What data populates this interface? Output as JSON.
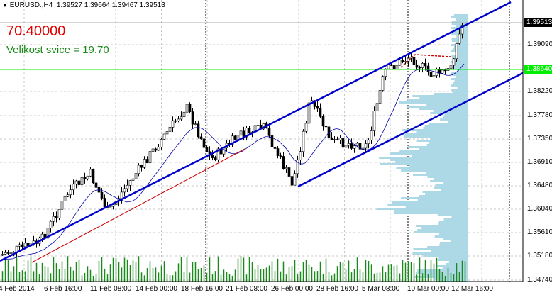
{
  "header": {
    "symbol_menu": "▼",
    "title": "EURUSD.,H4",
    "ohlc": "1.39527 1.39664 1.39467 1.39513"
  },
  "indicator": {
    "value": "70.40000",
    "candle_size": "Velikost svice = 19.70"
  },
  "colors": {
    "bull": "#000000",
    "bear": "#000000",
    "channel": "#0000cc",
    "ma": "#0000aa",
    "trend": "#cc0000",
    "volume": "#1a8a1a",
    "profile": "#add8e6",
    "level": "#00ee00"
  },
  "price_axis": {
    "ticks": [
      "1.39090",
      "1.38220",
      "1.37780",
      "1.37350",
      "1.36910",
      "1.36480",
      "1.36040",
      "1.35610",
      "1.35180",
      "1.34740"
    ],
    "current_price": "1.39513",
    "level_price": "1.38640"
  },
  "time_axis": {
    "ticks": [
      "4 Feb 2014",
      "6 Feb 16:00",
      "11 Feb 08:00",
      "14 Feb 00:00",
      "18 Feb 16:00",
      "21 Feb 08:00",
      "26 Feb 00:00",
      "28 Feb 16:00",
      "5 Mar 08:00",
      "10 Mar 00:00",
      "12 Mar 16:00"
    ]
  }
}
